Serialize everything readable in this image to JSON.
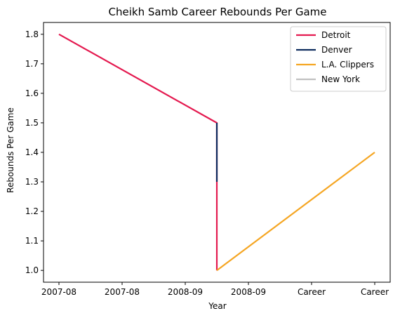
{
  "chart_data": {
    "type": "line",
    "title": "Cheikh Samb Career Rebounds Per Game",
    "xlabel": "Year",
    "ylabel": "Rebounds Per Game",
    "x_tick_labels": [
      "2007-08",
      "2007-08",
      "2008-09",
      "2008-09",
      "Career",
      "Career"
    ],
    "y_ticks": [
      1.0,
      1.1,
      1.2,
      1.3,
      1.4,
      1.5,
      1.6,
      1.7,
      1.8
    ],
    "ylim": [
      0.96,
      1.84
    ],
    "legend_position": "top-right",
    "grid": false,
    "series": [
      {
        "name": "Detroit",
        "color": "#E4194F",
        "points": [
          {
            "x": "2007-08",
            "y": 1.8
          },
          {
            "x": "2008-09",
            "y": 1.5
          },
          {
            "x": "2008-09",
            "y": 1.3
          },
          {
            "x": "2008-09",
            "y": 1.0
          }
        ]
      },
      {
        "name": "Denver",
        "color": "#0D2B5E",
        "points": [
          {
            "x": "2008-09",
            "y": 1.5
          },
          {
            "x": "2008-09",
            "y": 1.3
          }
        ]
      },
      {
        "name": "L.A. Clippers",
        "color": "#F5A623",
        "points": [
          {
            "x": "2008-09",
            "y": 1.0
          },
          {
            "x": "Career",
            "y": 1.4
          }
        ]
      },
      {
        "name": "New York",
        "color": "#C0C0C0",
        "points": []
      }
    ]
  }
}
